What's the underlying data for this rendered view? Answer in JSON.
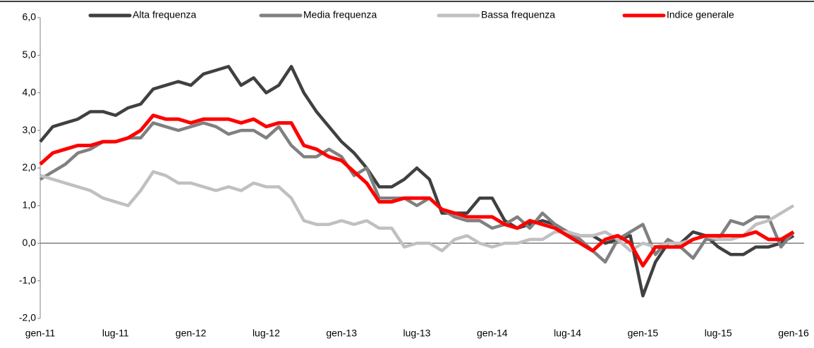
{
  "chart_data": {
    "type": "line",
    "categories": [
      "gen-11",
      null,
      null,
      null,
      null,
      null,
      "lug-11",
      null,
      null,
      null,
      null,
      null,
      "gen-12",
      null,
      null,
      null,
      null,
      null,
      "lug-12",
      null,
      null,
      null,
      null,
      null,
      "gen-13",
      null,
      null,
      null,
      null,
      null,
      "lug-13",
      null,
      null,
      null,
      null,
      null,
      "gen-14",
      null,
      null,
      null,
      null,
      null,
      "lug-14",
      null,
      null,
      null,
      null,
      null,
      "gen-15",
      null,
      null,
      null,
      null,
      null,
      "lug-15",
      null,
      null,
      null,
      null,
      null,
      "gen-16"
    ],
    "series": [
      {
        "name": "Alta frequenza",
        "color": "#404040",
        "values": [
          2.7,
          3.1,
          3.2,
          3.3,
          3.5,
          3.5,
          3.4,
          3.6,
          3.7,
          4.1,
          4.2,
          4.3,
          4.2,
          4.5,
          4.6,
          4.7,
          4.2,
          4.4,
          4.0,
          4.2,
          4.7,
          4.0,
          3.5,
          3.1,
          2.7,
          2.4,
          2.0,
          1.5,
          1.5,
          1.7,
          2.0,
          1.7,
          0.8,
          0.8,
          0.8,
          1.2,
          1.2,
          0.6,
          0.4,
          0.5,
          0.6,
          0.5,
          0.3,
          0.2,
          0.2,
          0.0,
          0.1,
          0.2,
          -1.4,
          -0.5,
          0.0,
          0.0,
          0.3,
          0.2,
          -0.1,
          -0.3,
          -0.3,
          -0.1,
          -0.1,
          0.0,
          0.2
        ]
      },
      {
        "name": "Media frequenza",
        "color": "#808080",
        "values": [
          1.7,
          1.9,
          2.1,
          2.4,
          2.5,
          2.7,
          2.7,
          2.8,
          2.8,
          3.2,
          3.1,
          3.0,
          3.1,
          3.2,
          3.1,
          2.9,
          3.0,
          3.0,
          2.8,
          3.1,
          2.6,
          2.3,
          2.3,
          2.5,
          2.3,
          1.8,
          2.0,
          1.2,
          1.2,
          1.2,
          1.0,
          1.2,
          0.9,
          0.7,
          0.6,
          0.6,
          0.4,
          0.5,
          0.7,
          0.4,
          0.8,
          0.5,
          0.3,
          0.1,
          -0.2,
          -0.5,
          0.1,
          0.3,
          0.5,
          -0.3,
          0.1,
          -0.1,
          -0.4,
          0.1,
          0.1,
          0.6,
          0.5,
          0.7,
          0.7,
          -0.1,
          0.3
        ]
      },
      {
        "name": "Bassa frequenza",
        "color": "#c0c0c0",
        "values": [
          1.8,
          1.7,
          1.6,
          1.5,
          1.4,
          1.2,
          1.1,
          1.0,
          1.4,
          1.9,
          1.8,
          1.6,
          1.6,
          1.5,
          1.4,
          1.5,
          1.4,
          1.6,
          1.5,
          1.5,
          1.2,
          0.6,
          0.5,
          0.5,
          0.6,
          0.5,
          0.6,
          0.4,
          0.4,
          -0.1,
          0.0,
          0.0,
          -0.2,
          0.1,
          0.2,
          0.0,
          -0.1,
          0.0,
          0.0,
          0.1,
          0.1,
          0.3,
          0.3,
          0.2,
          0.2,
          0.3,
          0.1,
          -0.2,
          0.0,
          -0.1,
          0.0,
          0.0,
          0.1,
          0.2,
          0.1,
          0.1,
          0.2,
          0.5,
          0.6,
          0.8,
          1.0
        ]
      },
      {
        "name": "Indice generale",
        "color": "#ff0000",
        "values": [
          2.1,
          2.4,
          2.5,
          2.6,
          2.6,
          2.7,
          2.7,
          2.8,
          3.0,
          3.4,
          3.3,
          3.3,
          3.2,
          3.3,
          3.3,
          3.3,
          3.2,
          3.3,
          3.1,
          3.2,
          3.2,
          2.6,
          2.5,
          2.3,
          2.2,
          1.9,
          1.6,
          1.1,
          1.1,
          1.2,
          1.2,
          1.2,
          0.9,
          0.8,
          0.7,
          0.7,
          0.7,
          0.5,
          0.4,
          0.6,
          0.5,
          0.4,
          0.2,
          0.0,
          -0.2,
          0.1,
          0.2,
          0.0,
          -0.6,
          -0.1,
          -0.1,
          -0.1,
          0.1,
          0.2,
          0.2,
          0.2,
          0.2,
          0.3,
          0.1,
          0.1,
          0.3
        ]
      }
    ],
    "ylim": [
      -2,
      6
    ],
    "yticks": [
      {
        "value": -2,
        "label": "-2,0"
      },
      {
        "value": -1,
        "label": "-1,0"
      },
      {
        "value": 0,
        "label": "0,0"
      },
      {
        "value": 1,
        "label": "1,0"
      },
      {
        "value": 2,
        "label": "2,0"
      },
      {
        "value": 3,
        "label": "3,0"
      },
      {
        "value": 4,
        "label": "4,0"
      },
      {
        "value": 5,
        "label": "5,0"
      },
      {
        "value": 6,
        "label": "6,0"
      }
    ],
    "legend": "top"
  }
}
